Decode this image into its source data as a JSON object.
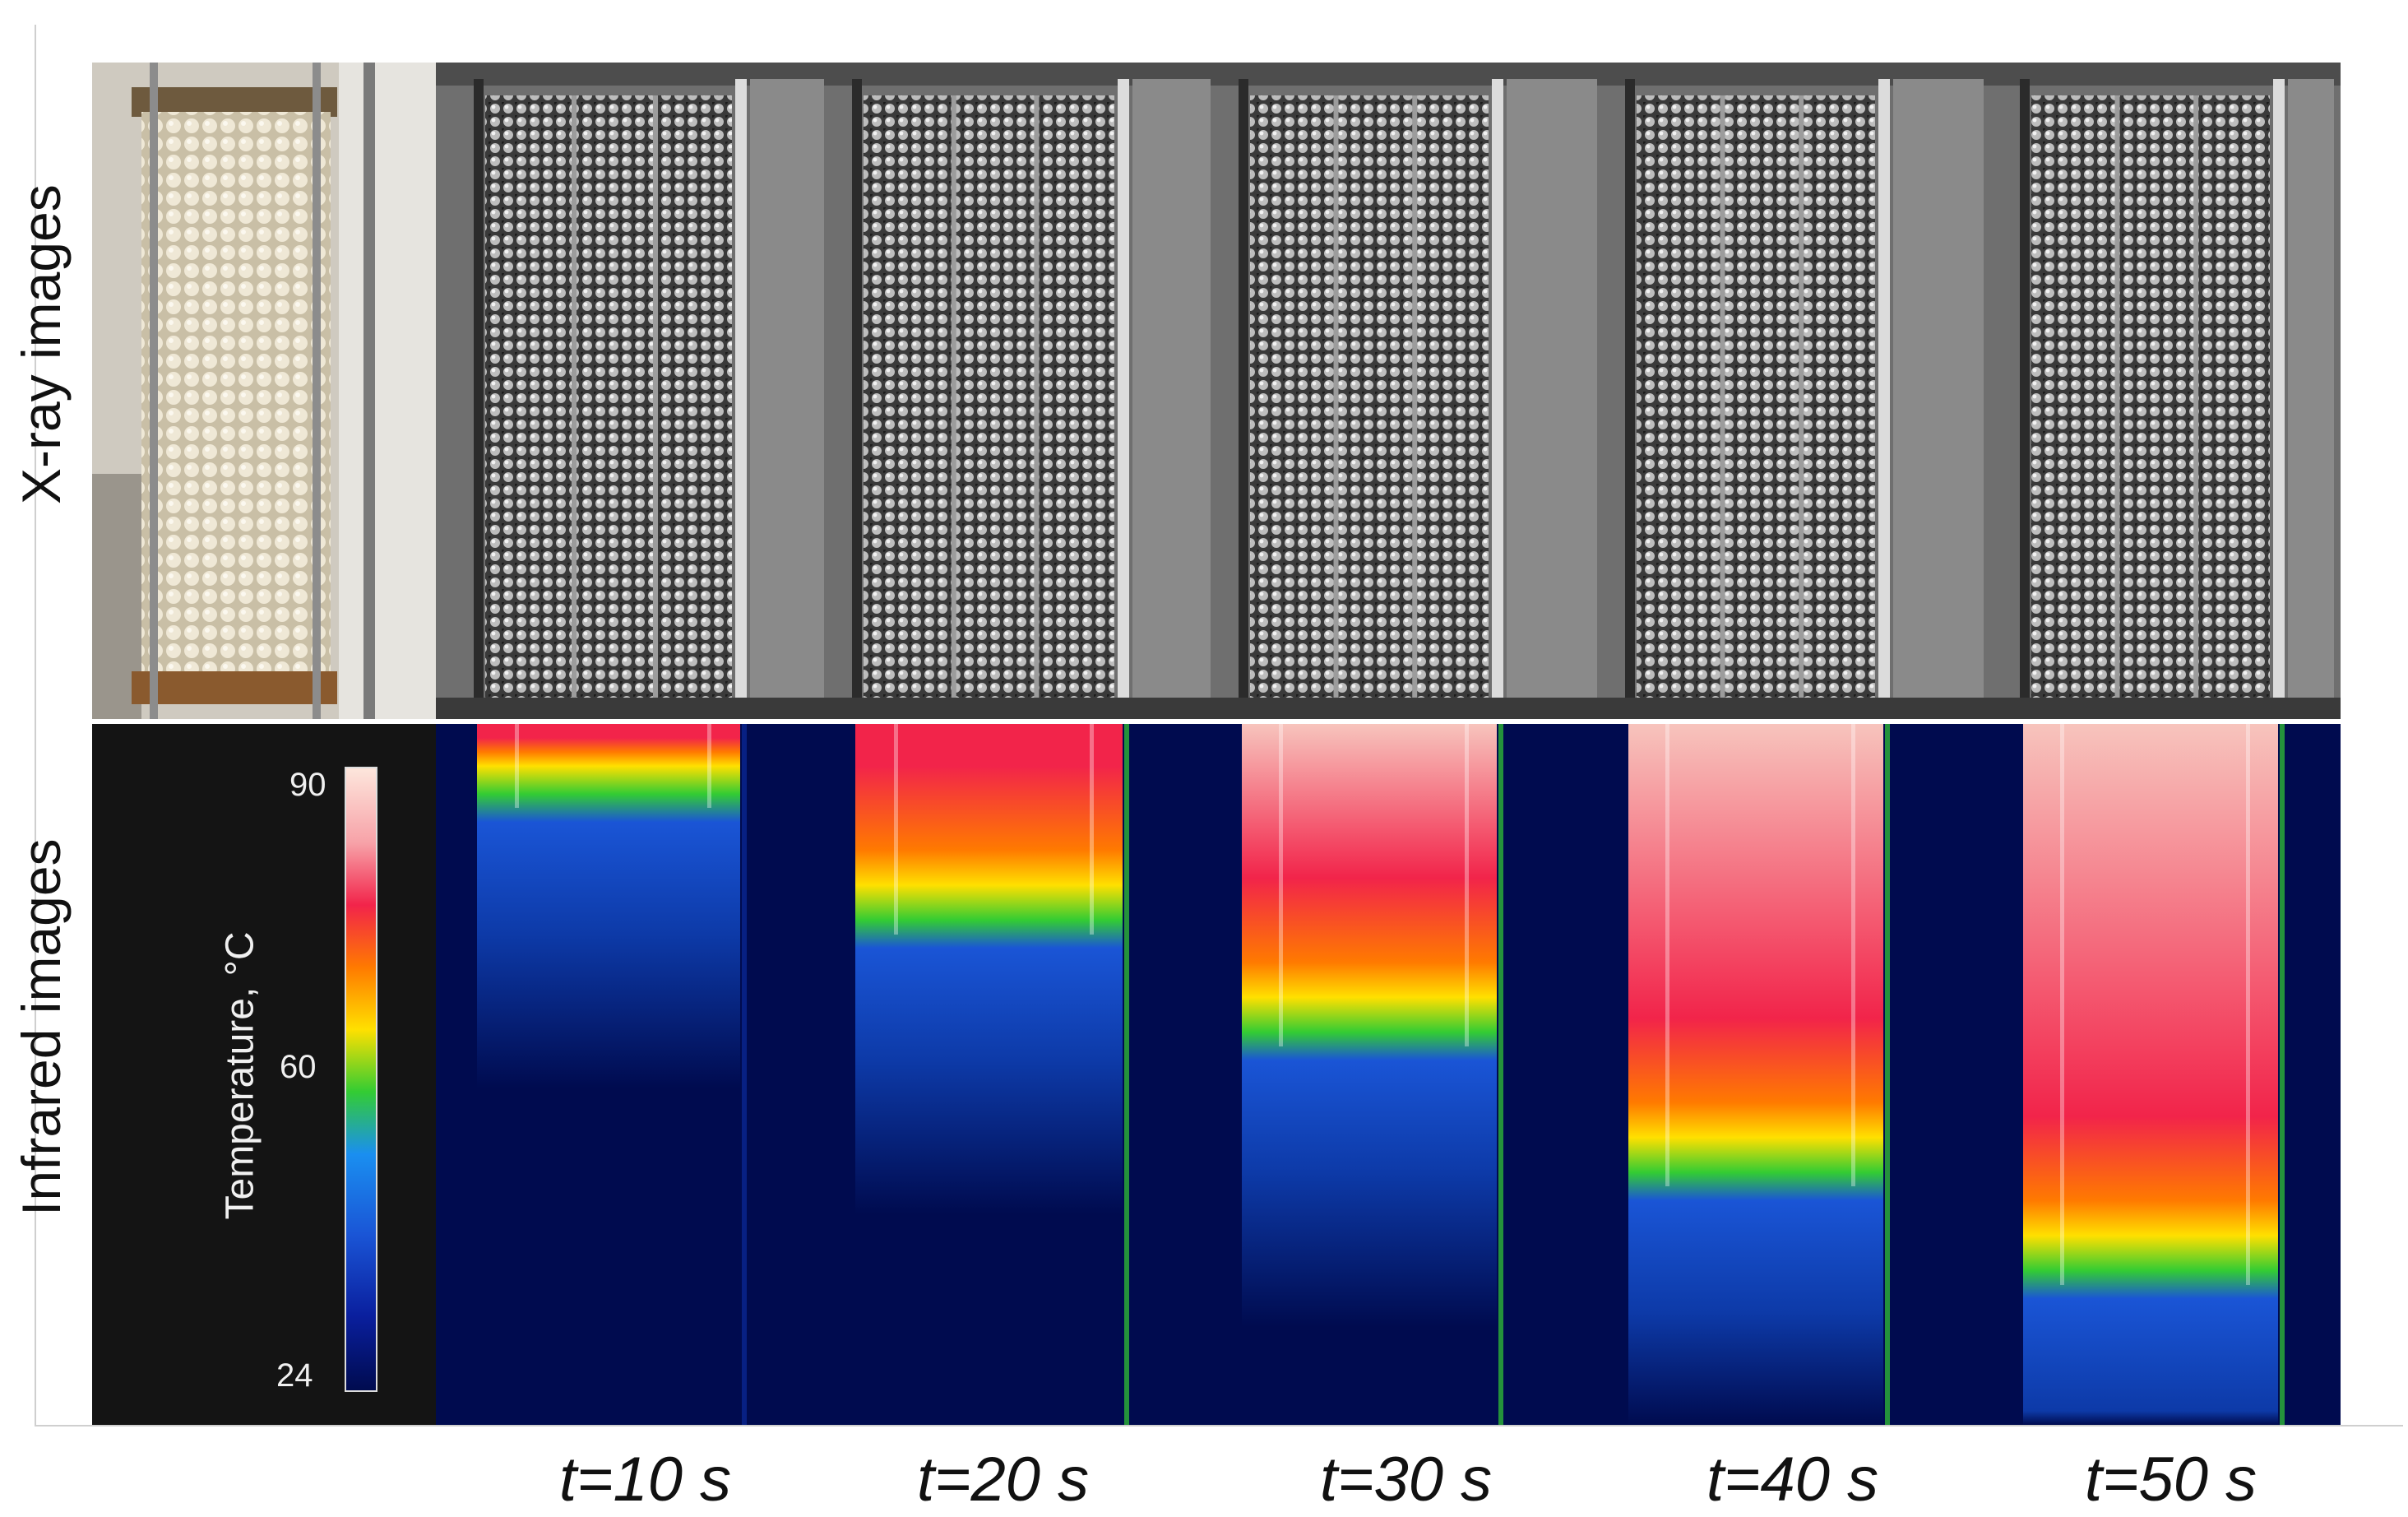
{
  "row_labels": {
    "xray": "X-ray images",
    "infrared": "Infrared images"
  },
  "colorbar": {
    "title": "Temperature, °C",
    "max": "90",
    "mid": "60",
    "min": "24"
  },
  "time_labels": [
    "t=10 s",
    "t=20 s",
    "t=30 s",
    "t=40 s",
    "t=50 s"
  ],
  "heat_front_fraction": [
    0.12,
    0.3,
    0.46,
    0.66,
    0.8
  ],
  "colors": {
    "cold": "#000b4f",
    "blue": "#1a55d6",
    "green": "#33cc33",
    "yellow": "#ffe000",
    "orange": "#ff7a00",
    "red": "#f2244a",
    "hot": "#f7c4bd"
  }
}
